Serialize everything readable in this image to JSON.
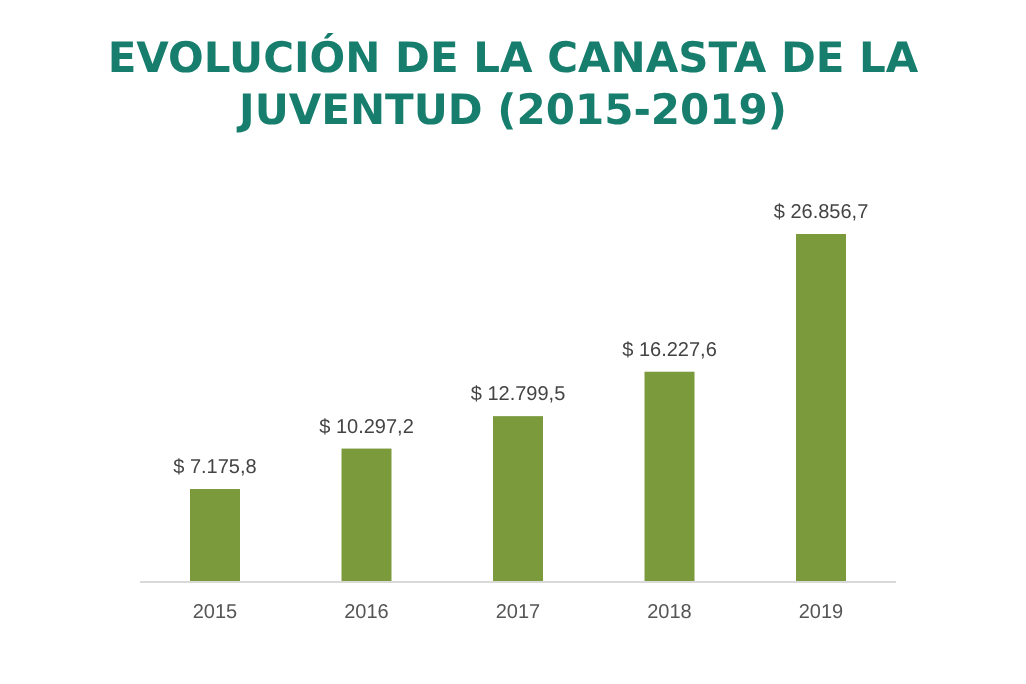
{
  "chart_data": {
    "type": "bar",
    "title": "EVOLUCIÓN DE LA CANASTA DE LA JUVENTUD (2015-2019)",
    "categories": [
      "2015",
      "2016",
      "2017",
      "2018",
      "2019"
    ],
    "values": [
      7175.8,
      10297.2,
      12799.5,
      16227.6,
      26856.7
    ],
    "value_labels": [
      "$ 7.175,8",
      "$ 10.297,2",
      "$ 12.799,5",
      "$ 16.227,6",
      "$ 26.856,7"
    ],
    "color": "#7a9a3c"
  }
}
